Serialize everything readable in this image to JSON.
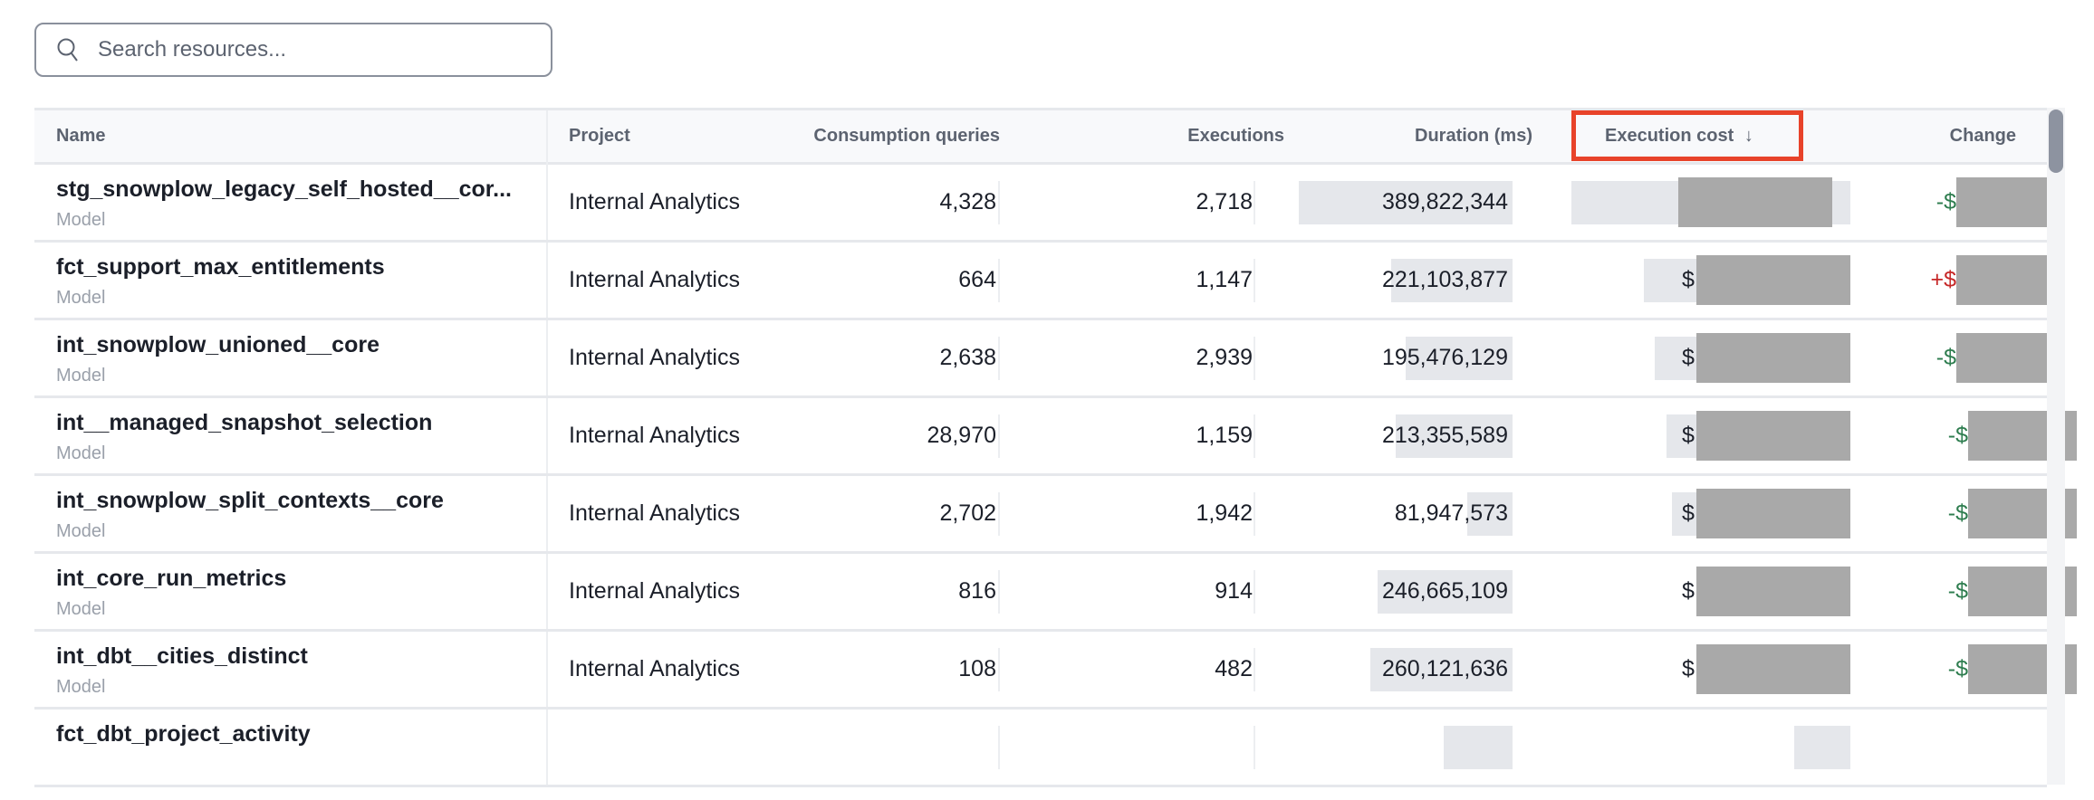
{
  "search": {
    "placeholder": "Search resources...",
    "value": "",
    "icon": "search-icon"
  },
  "columns": {
    "name": "Name",
    "project": "Project",
    "consumption_queries": "Consumption queries",
    "executions": "Executions",
    "duration": "Duration (ms)",
    "execution_cost": "Execution cost",
    "sort_indicator": "↓",
    "change": "Change"
  },
  "sort": {
    "column": "Execution cost",
    "direction": "descending"
  },
  "highlight_color": "#e8432a",
  "colors": {
    "decrease": "#2e7d4f",
    "increase": "#c62828",
    "bar": "#e5e7eb"
  },
  "rows": [
    {
      "name": "stg_snowplow_legacy_self_hosted__cor...",
      "type": "Model",
      "project": "Internal Analytics",
      "consumption_queries": "4,328",
      "executions": "2,718",
      "duration_ms": 389822344,
      "duration": "389,822,344",
      "cost_prefix": "$",
      "cost_bar_fraction": 1.0,
      "change_prefix": "-$",
      "change_direction": "decrease"
    },
    {
      "name": "fct_support_max_entitlements",
      "type": "Model",
      "project": "Internal Analytics",
      "consumption_queries": "664",
      "executions": "1,147",
      "duration_ms": 221103877,
      "duration": "221,103,877",
      "cost_prefix": "$",
      "cost_bar_fraction": 0.74,
      "change_prefix": "+$",
      "change_direction": "increase"
    },
    {
      "name": "int_snowplow_unioned__core",
      "type": "Model",
      "project": "Internal Analytics",
      "consumption_queries": "2,638",
      "executions": "2,939",
      "duration_ms": 195476129,
      "duration": "195,476,129",
      "cost_prefix": "$",
      "cost_bar_fraction": 0.7,
      "change_prefix": "-$",
      "change_direction": "decrease"
    },
    {
      "name": "int__managed_snapshot_selection",
      "type": "Model",
      "project": "Internal Analytics",
      "consumption_queries": "28,970",
      "executions": "1,159",
      "duration_ms": 213355589,
      "duration": "213,355,589",
      "cost_prefix": "$",
      "cost_bar_fraction": 0.66,
      "change_prefix": "-$",
      "change_direction": "decrease"
    },
    {
      "name": "int_snowplow_split_contexts__core",
      "type": "Model",
      "project": "Internal Analytics",
      "consumption_queries": "2,702",
      "executions": "1,942",
      "duration_ms": 81947573,
      "duration": "81,947,573",
      "cost_prefix": "$",
      "cost_bar_fraction": 0.64,
      "change_prefix": "-$",
      "change_direction": "decrease"
    },
    {
      "name": "int_core_run_metrics",
      "type": "Model",
      "project": "Internal Analytics",
      "consumption_queries": "816",
      "executions": "914",
      "duration_ms": 246665109,
      "duration": "246,665,109",
      "cost_prefix": "$",
      "cost_bar_fraction": 0.55,
      "change_prefix": "-$",
      "change_direction": "decrease"
    },
    {
      "name": "int_dbt__cities_distinct",
      "type": "Model",
      "project": "Internal Analytics",
      "consumption_queries": "108",
      "executions": "482",
      "duration_ms": 260121636,
      "duration": "260,121,636",
      "cost_prefix": "$",
      "cost_bar_fraction": 0.55,
      "change_prefix": "-$",
      "change_direction": "decrease"
    },
    {
      "name": "fct_dbt_project_activity",
      "type": "",
      "project": "",
      "consumption_queries": "",
      "executions": "",
      "duration_ms": 125000000,
      "duration": "",
      "cost_prefix": "",
      "cost_bar_fraction": 0.2,
      "change_prefix": "",
      "change_direction": ""
    }
  ]
}
